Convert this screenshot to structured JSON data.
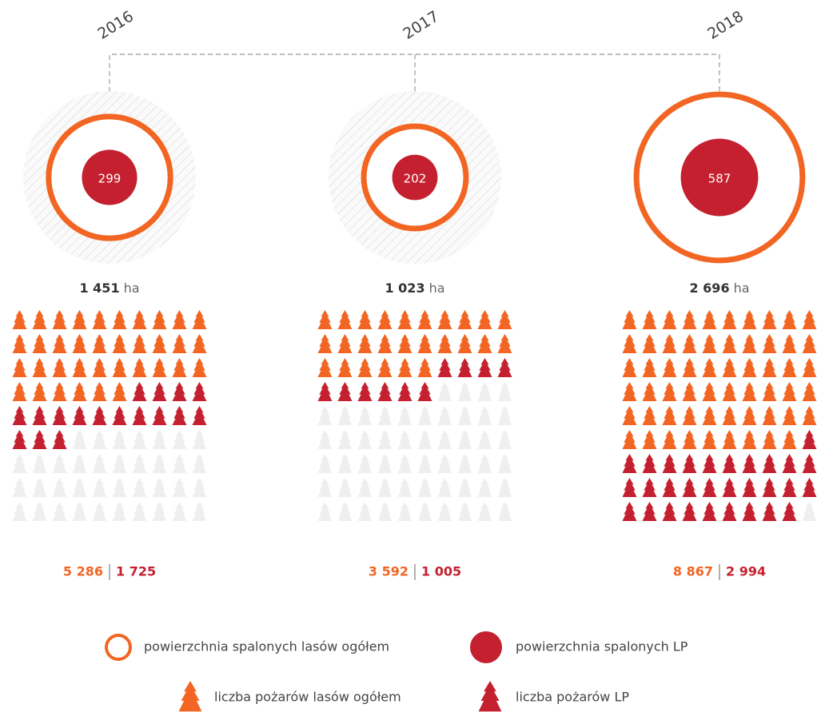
{
  "years": [
    {
      "year": "2016",
      "area_total": {
        "value": 1451,
        "label": "1 451"
      },
      "area_unit": "ha",
      "area_lp": 299,
      "fires_total": {
        "value": 5286,
        "label": "5 286"
      },
      "fires_lp": {
        "value": 1725,
        "label": "1 725"
      }
    },
    {
      "year": "2017",
      "area_total": {
        "value": 1023,
        "label": "1 023"
      },
      "area_unit": "ha",
      "area_lp": 202,
      "fires_total": {
        "value": 3592,
        "label": "3 592"
      },
      "fires_lp": {
        "value": 1005,
        "label": "1 005"
      }
    },
    {
      "year": "2018",
      "area_total": {
        "value": 2696,
        "label": "2 696"
      },
      "area_unit": "ha",
      "area_lp": 587,
      "fires_total": {
        "value": 8867,
        "label": "8 867"
      },
      "fires_lp": {
        "value": 2994,
        "label": "2 994"
      }
    }
  ],
  "colors": {
    "total": "#f26522",
    "lp": "#c4202f",
    "empty": "#efefef"
  },
  "legend": {
    "area_total": "powierzchnia spalonych lasów ogółem",
    "area_lp": "powierzchnia spalonych LP",
    "fires_total": "liczba pożarów lasów ogółem",
    "fires_lp": "liczba pożarów LP"
  }
}
